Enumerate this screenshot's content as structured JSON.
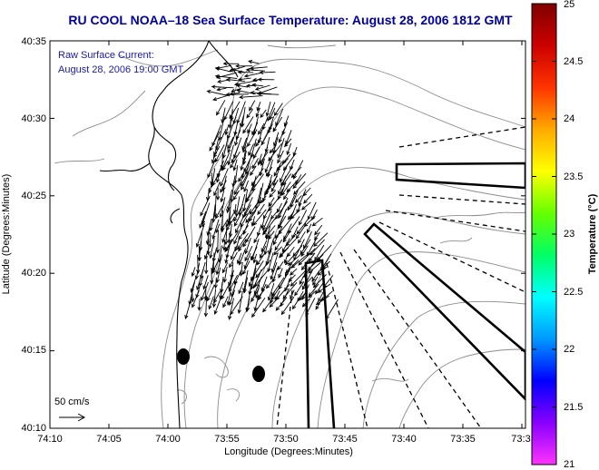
{
  "title": "RU COOL  NOAA–18  Sea Surface Temperature:  August 28, 2006 1812 GMT",
  "annotation": {
    "line1": "Raw Surface Current:",
    "line2": "August 28, 2006 19:00 GMT",
    "color": "#1a1aa0"
  },
  "scale": {
    "label": "50 cm/s"
  },
  "axes": {
    "xlabel": "Longitude (Degrees:Minutes)",
    "ylabel": "Latitude (Degrees:Minutes)",
    "x_ticks": [
      "74:10",
      "74:05",
      "74:00",
      "73:55",
      "73:50",
      "73:45",
      "73:40",
      "73:35",
      "73:3"
    ],
    "y_ticks": [
      "40:35",
      "40:30",
      "40:25",
      "40:20",
      "40:15",
      "40:10"
    ]
  },
  "colorbar": {
    "label": "Temperature (°C)",
    "ticks": [
      "25",
      "24.5",
      "24",
      "23.5",
      "23",
      "22.5",
      "22",
      "21.5",
      "21"
    ],
    "min": 21,
    "max": 25,
    "colors": [
      "#ff33ff",
      "#8800ff",
      "#0000ff",
      "#0099ff",
      "#00ffff",
      "#00ff66",
      "#66ff00",
      "#ffff00",
      "#ffaa00",
      "#ff3300",
      "#cc0000",
      "#800000"
    ]
  }
}
